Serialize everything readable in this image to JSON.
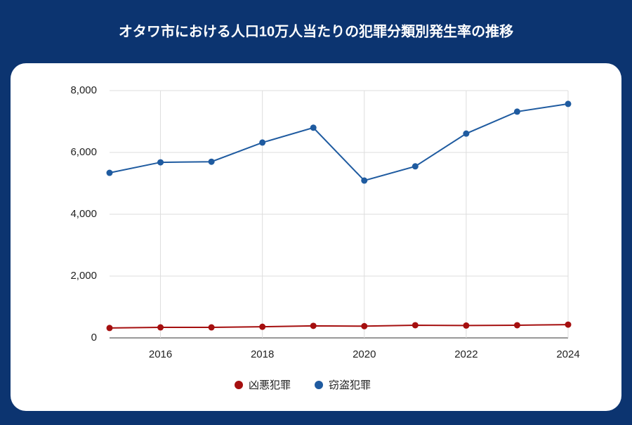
{
  "chart_data": {
    "type": "line",
    "title": "オタワ市における人口10万人当たりの犯罪分類別発生率の推移",
    "x": [
      2015,
      2016,
      2017,
      2018,
      2019,
      2020,
      2021,
      2022,
      2023,
      2024
    ],
    "series": [
      {
        "name": "凶悪犯罪",
        "color": "#a50f0f",
        "values": [
          320,
          340,
          340,
          360,
          390,
          380,
          410,
          400,
          410,
          430
        ]
      },
      {
        "name": "窃盗犯罪",
        "color": "#1f5ba0",
        "values": [
          5340,
          5680,
          5700,
          6320,
          6800,
          5090,
          5550,
          6610,
          7320,
          7570
        ]
      }
    ],
    "xlim": [
      2015,
      2024
    ],
    "xticks": [
      2016,
      2018,
      2020,
      2022,
      2024
    ],
    "ylim": [
      0,
      8000
    ],
    "yticks": [
      0,
      {
        "value": 2000,
        "label": "2,000"
      },
      {
        "value": 4000,
        "label": "4,000"
      },
      {
        "value": 6000,
        "label": "6,000"
      },
      {
        "value": 8000,
        "label": "8,000"
      }
    ],
    "grid": true,
    "legend": "bottom"
  }
}
